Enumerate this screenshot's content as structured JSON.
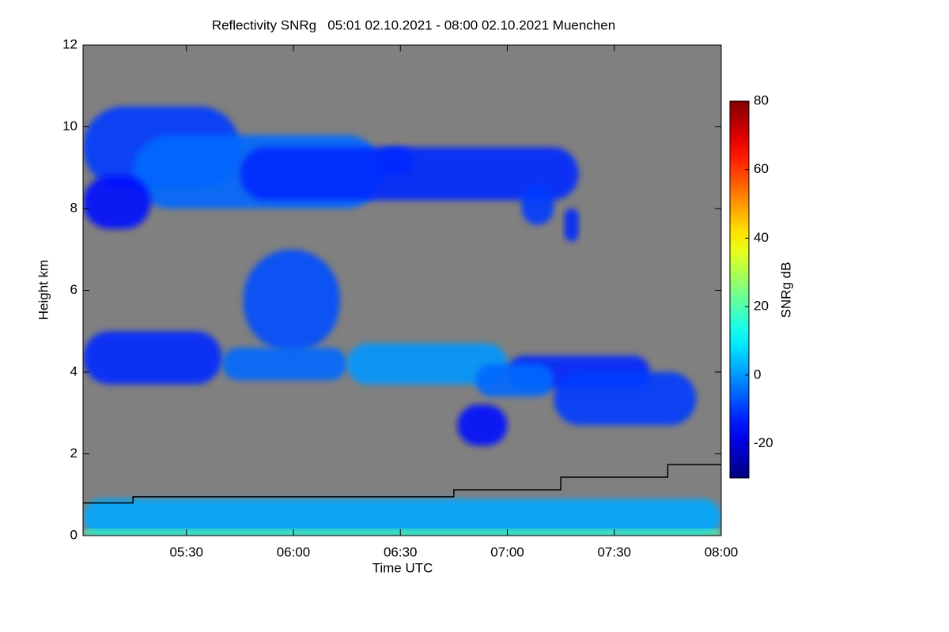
{
  "chart_data": {
    "type": "heatmap",
    "title": "Reflectivity SNRg   05:01 02.10.2021 - 08:00 02.10.2021 Muenchen",
    "xlabel": "Time UTC",
    "ylabel": "Height km",
    "colorbar_label": "SNRg dB",
    "xlim": [
      301,
      480
    ],
    "xticks": [
      {
        "value": 330,
        "label": "05:30"
      },
      {
        "value": 360,
        "label": "06:00"
      },
      {
        "value": 390,
        "label": "06:30"
      },
      {
        "value": 420,
        "label": "07:00"
      },
      {
        "value": 450,
        "label": "07:30"
      },
      {
        "value": 480,
        "label": "08:00"
      }
    ],
    "ylim": [
      0,
      12
    ],
    "yticks": [
      0,
      2,
      4,
      6,
      8,
      10,
      12
    ],
    "clim": [
      -30,
      80
    ],
    "cticks": [
      -20,
      0,
      20,
      40,
      60,
      80
    ],
    "colormap": "jet",
    "background": "#808080",
    "cells": [
      {
        "x": [
          301,
          345
        ],
        "y": [
          8.5,
          10.5
        ],
        "value": -10
      },
      {
        "x": [
          315,
          385
        ],
        "y": [
          8.0,
          9.8
        ],
        "value": -5
      },
      {
        "x": [
          345,
          440
        ],
        "y": [
          8.2,
          9.5
        ],
        "value": -12
      },
      {
        "x": [
          301,
          320
        ],
        "y": [
          7.5,
          8.8
        ],
        "value": -15
      },
      {
        "x": [
          383,
          394
        ],
        "y": [
          8.8,
          9.5
        ],
        "value": -12
      },
      {
        "x": [
          424,
          433
        ],
        "y": [
          7.6,
          8.6
        ],
        "value": -10
      },
      {
        "x": [
          436,
          440
        ],
        "y": [
          7.2,
          8.0
        ],
        "value": -12
      },
      {
        "x": [
          346,
          373
        ],
        "y": [
          4.5,
          7.0
        ],
        "value": -8
      },
      {
        "x": [
          301,
          340
        ],
        "y": [
          3.7,
          5.0
        ],
        "value": -12
      },
      {
        "x": [
          340,
          375
        ],
        "y": [
          3.8,
          4.6
        ],
        "value": -5
      },
      {
        "x": [
          375,
          420
        ],
        "y": [
          3.7,
          4.7
        ],
        "value": 0
      },
      {
        "x": [
          420,
          460
        ],
        "y": [
          3.6,
          4.4
        ],
        "value": -12
      },
      {
        "x": [
          411,
          433
        ],
        "y": [
          3.4,
          4.2
        ],
        "value": -5
      },
      {
        "x": [
          433,
          473
        ],
        "y": [
          2.7,
          4.0
        ],
        "value": -10
      },
      {
        "x": [
          406,
          420
        ],
        "y": [
          2.2,
          3.2
        ],
        "value": -15
      },
      {
        "x": [
          301,
          480
        ],
        "y": [
          0,
          0.9
        ],
        "value": 2
      },
      {
        "x": [
          301,
          480
        ],
        "y": [
          0,
          0.15
        ],
        "value": 20
      }
    ],
    "series": [
      {
        "color": "#000000",
        "x": [
          301,
          315,
          315,
          405,
          405,
          435,
          435,
          465,
          465,
          480
        ],
        "values": [
          0.8,
          0.8,
          0.95,
          0.95,
          1.12,
          1.12,
          1.43,
          1.43,
          1.74,
          1.74
        ]
      }
    ]
  }
}
